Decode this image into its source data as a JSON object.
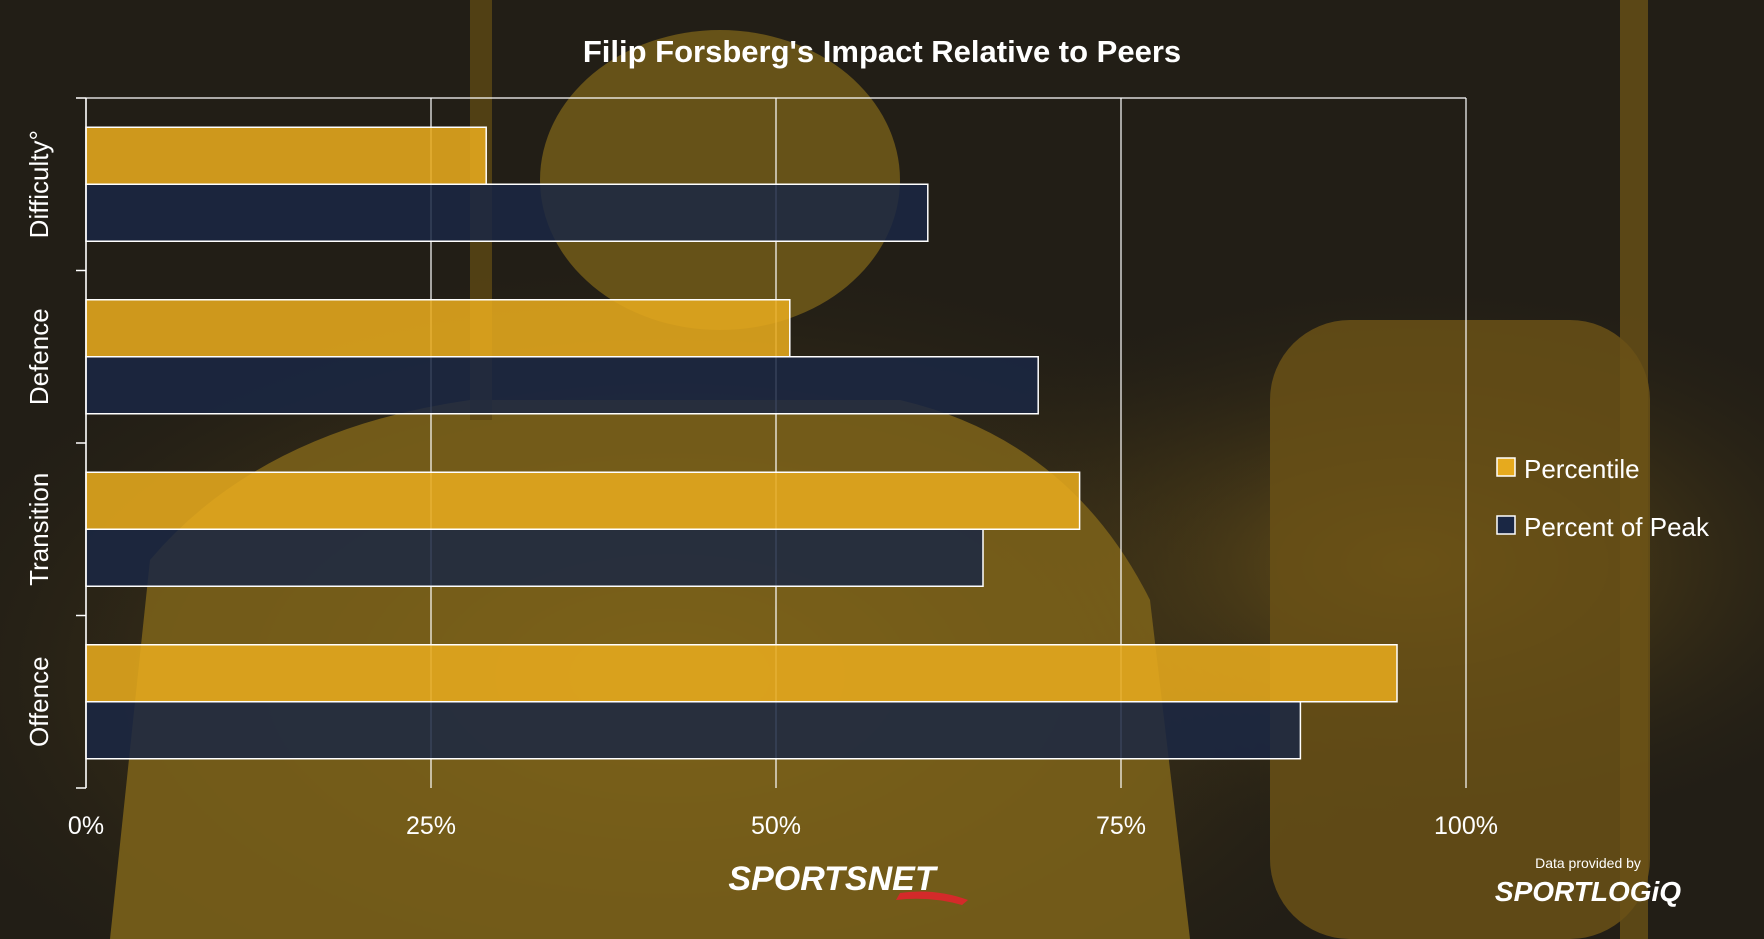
{
  "chart_data": {
    "type": "bar",
    "orientation": "horizontal",
    "title": "Filip Forsberg's Impact Relative to Peers",
    "categories": [
      "Difficulty°",
      "Defence",
      "Transition",
      "Offence"
    ],
    "series": [
      {
        "name": "Percentile",
        "color": "#e6aa1e",
        "values": [
          29,
          51,
          72,
          95
        ]
      },
      {
        "name": "Percent of Peak",
        "color": "#1a2744",
        "values": [
          61,
          69,
          65,
          88
        ]
      }
    ],
    "xlim": [
      0,
      100
    ],
    "xticks": [
      0,
      25,
      50,
      75,
      100
    ],
    "xtick_labels": [
      "0%",
      "25%",
      "50%",
      "75%",
      "100%"
    ],
    "grid": true,
    "legend": "right"
  },
  "branding": {
    "sportsnet": "SPORTSNET",
    "data_provided_by": "Data provided by",
    "sportlogiq": "SPORTLOGiQ"
  }
}
